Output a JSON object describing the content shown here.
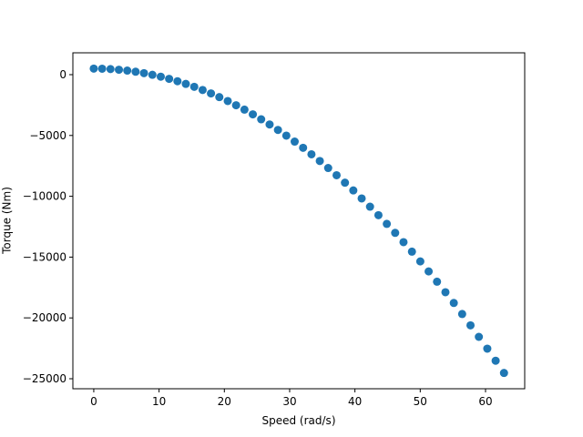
{
  "chart_data": {
    "type": "scatter",
    "xlabel": "Speed (rad/s)",
    "ylabel": "Torque (Nm)",
    "series": [
      {
        "color": "#1f77b4",
        "x": [
          0,
          1.28,
          2.56,
          3.85,
          5.13,
          6.41,
          7.69,
          8.98,
          10.26,
          11.54,
          12.82,
          14.1,
          15.39,
          16.67,
          17.95,
          19.23,
          20.52,
          21.8,
          23.08,
          24.36,
          25.64,
          26.93,
          28.21,
          29.49,
          30.77,
          32.06,
          33.34,
          34.62,
          35.9,
          37.19,
          38.47,
          39.75,
          41.03,
          42.31,
          43.6,
          44.88,
          46.16,
          47.44,
          48.73,
          50.01,
          51.29,
          52.57,
          53.86,
          55.14,
          56.42,
          57.7,
          58.98,
          60.27,
          61.55,
          62.83
        ],
        "values": [
          500,
          490,
          458,
          406,
          333,
          239,
          125,
          -11,
          -167,
          -344,
          -542,
          -761,
          -1001,
          -1262,
          -1543,
          -1846,
          -2169,
          -2513,
          -2877,
          -3263,
          -3669,
          -4097,
          -4545,
          -5014,
          -5504,
          -6015,
          -6547,
          -7100,
          -7674,
          -8268,
          -8883,
          -9520,
          -10177,
          -10854,
          -11551,
          -12270,
          -13009,
          -13770,
          -14552,
          -15354,
          -16177,
          -17021,
          -17887,
          -18773,
          -19680,
          -20608,
          -21557,
          -22528,
          -23519,
          -24524
        ]
      }
    ],
    "xlim": [
      -3.2,
      66.0
    ],
    "xticks": [
      0,
      10,
      20,
      30,
      40,
      50,
      60
    ],
    "ylim": [
      -25823,
      1796
    ],
    "yticks": [
      0,
      {
        "value": -5000,
        "label": "−5000"
      },
      {
        "value": -10000,
        "label": "−10000"
      },
      {
        "value": -15000,
        "label": "−15000"
      },
      {
        "value": -20000,
        "label": "−20000"
      },
      {
        "value": -25000,
        "label": "−25000"
      }
    ],
    "grid": false
  }
}
